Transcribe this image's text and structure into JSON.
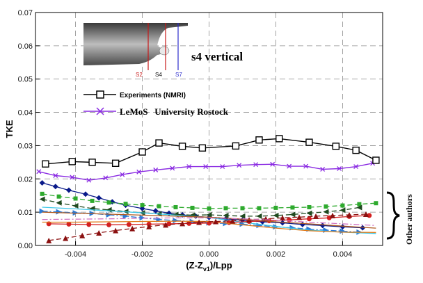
{
  "chart_data": {
    "type": "line",
    "xlabel": "(Z-Z",
    "xlabel_sub": "v1",
    "xlabel_tail": ")/Lpp",
    "ylabel": "TKE",
    "xlim": [
      -0.0052,
      0.0052
    ],
    "ylim": [
      0,
      0.07
    ],
    "x_ticks": [
      -0.004,
      -0.002,
      0.0,
      0.002,
      0.004
    ],
    "x_tick_labels": [
      "-0.004",
      "-0.002",
      "0.000",
      "0.002",
      "0.004"
    ],
    "y_ticks": [
      0,
      0.01,
      0.02,
      0.03,
      0.04,
      0.05,
      0.06,
      0.07
    ],
    "y_tick_labels": [
      "0.00",
      "0.01",
      "0.02",
      "0.03",
      "0.04",
      "0.05",
      "0.06",
      "0.07"
    ],
    "grid": true,
    "inset": {
      "title": "s4 vertical",
      "stations": [
        "S2",
        "S4",
        "S7"
      ]
    },
    "legend": [
      {
        "label": "Experiments (NMRI)",
        "color": "#000000",
        "marker": "square-open"
      },
      {
        "label": "LeMoS   University Rostock",
        "color": "#8a2be2",
        "marker": "x"
      }
    ],
    "side_note": "Other authors",
    "series": [
      {
        "name": "Experiments (NMRI)",
        "color": "#000000",
        "marker": "square-open",
        "dash": "solid",
        "x": [
          -0.0049,
          -0.0041,
          -0.0035,
          -0.0028,
          -0.002,
          -0.0015,
          -0.0008,
          -0.0002,
          0.0008,
          0.0015,
          0.0021,
          0.003,
          0.0038,
          0.0044,
          0.005
        ],
        "y": [
          0.0245,
          0.0252,
          0.025,
          0.0247,
          0.0281,
          0.0308,
          0.0298,
          0.0293,
          0.0299,
          0.0317,
          0.0321,
          0.031,
          0.0298,
          0.0286,
          0.0256
        ]
      },
      {
        "name": "LeMoS   University Rostock",
        "color": "#8a2be2",
        "marker": "x",
        "dash": "solid",
        "x": [
          -0.0051,
          -0.0046,
          -0.0041,
          -0.0036,
          -0.0031,
          -0.0026,
          -0.0021,
          -0.0016,
          -0.0011,
          -0.0006,
          -0.0001,
          0.0004,
          0.0009,
          0.0014,
          0.0019,
          0.0024,
          0.0029,
          0.0034,
          0.0039,
          0.0044,
          0.0049
        ],
        "y": [
          0.0222,
          0.021,
          0.0205,
          0.0196,
          0.0203,
          0.0213,
          0.0221,
          0.0227,
          0.0232,
          0.0237,
          0.0237,
          0.0237,
          0.0241,
          0.0243,
          0.0244,
          0.0238,
          0.0238,
          0.0229,
          0.0231,
          0.0237,
          0.0247
        ]
      },
      {
        "color": "#0a1a8a",
        "marker": "diamond",
        "dash": "solid",
        "x": [
          -0.005,
          -0.0046,
          -0.0042,
          -0.0037,
          -0.0033,
          -0.0029,
          -0.0025,
          -0.002,
          -0.0016,
          -0.0012,
          -0.0008,
          -0.0004,
          0.0,
          0.0005,
          0.001,
          0.0016,
          0.0022,
          0.0028,
          0.0034,
          0.004,
          0.0046
        ],
        "y": [
          0.0188,
          0.0177,
          0.0166,
          0.0154,
          0.0143,
          0.0131,
          0.0121,
          0.0111,
          0.0104,
          0.0097,
          0.0092,
          0.0088,
          0.0084,
          0.008,
          0.0076,
          0.0071,
          0.0068,
          0.0063,
          0.006,
          0.0056,
          0.0053
        ]
      },
      {
        "color": "#2eaa2e",
        "marker": "square-filled",
        "dash": "dashed",
        "x": [
          -0.005,
          -0.0045,
          -0.004,
          -0.0035,
          -0.003,
          -0.0025,
          -0.002,
          -0.0015,
          -0.001,
          -0.0005,
          0.0,
          0.0005,
          0.001,
          0.0015,
          0.002,
          0.0025,
          0.003,
          0.0035,
          0.004,
          0.0045,
          0.005
        ],
        "y": [
          0.0155,
          0.0147,
          0.0141,
          0.0134,
          0.0129,
          0.0125,
          0.0121,
          0.0118,
          0.0115,
          0.0113,
          0.0111,
          0.0112,
          0.0112,
          0.0112,
          0.0113,
          0.0114,
          0.0115,
          0.0117,
          0.012,
          0.0124,
          0.0127
        ]
      },
      {
        "color": "#1f4a1f",
        "marker": "triangle-left",
        "dash": "dashed",
        "x": [
          -0.005,
          -0.0045,
          -0.004,
          -0.0035,
          -0.003,
          -0.0025,
          -0.002,
          -0.0015,
          -0.001,
          -0.0005,
          0.0,
          0.0005,
          0.001,
          0.0015,
          0.002,
          0.0025,
          0.003,
          0.0035,
          0.004,
          0.0045
        ],
        "y": [
          0.0139,
          0.0128,
          0.0119,
          0.0111,
          0.0107,
          0.0102,
          0.0098,
          0.0095,
          0.0093,
          0.0091,
          0.0092,
          0.009,
          0.0088,
          0.0088,
          0.009,
          0.0093,
          0.0097,
          0.0101,
          0.0106,
          0.0114
        ]
      },
      {
        "color": "#2a7ad6",
        "marker": "triangle-right",
        "dash": "dashdot",
        "x": [
          -0.005,
          -0.0045,
          -0.004,
          -0.0035,
          -0.003,
          -0.0025,
          -0.002,
          -0.0015,
          -0.001,
          -0.0005,
          0.0,
          0.0005,
          0.001,
          0.0015,
          0.002,
          0.0025,
          0.003,
          0.0035,
          0.004,
          0.0045
        ],
        "y": [
          0.0103,
          0.0101,
          0.0098,
          0.0096,
          0.0092,
          0.0088,
          0.0083,
          0.0078,
          0.0075,
          0.0072,
          0.0068,
          0.0066,
          0.0064,
          0.006,
          0.0056,
          0.0053,
          0.0049,
          0.0046,
          0.0043,
          0.004
        ]
      },
      {
        "color": "#3ec8e8",
        "marker": "none",
        "dash": "solid",
        "x": [
          -0.005,
          -0.004,
          -0.003,
          -0.002,
          -0.001,
          0.0,
          0.001,
          0.002,
          0.003,
          0.004,
          0.005
        ],
        "y": [
          0.0115,
          0.011,
          0.0104,
          0.0098,
          0.0091,
          0.0084,
          0.007,
          0.0057,
          0.0046,
          0.004,
          0.0036
        ]
      },
      {
        "color": "#d42020",
        "marker": "circle",
        "dash": "solid",
        "x": [
          -0.0048,
          -0.0042,
          -0.0036,
          -0.003,
          -0.0024,
          -0.0018,
          -0.0012,
          -0.0006,
          0.0,
          0.0006,
          0.0012,
          0.0018,
          0.0024,
          0.003,
          0.0036,
          0.0042,
          0.0048
        ],
        "y": [
          0.0065,
          0.0064,
          0.0063,
          0.0062,
          0.0063,
          0.0064,
          0.0065,
          0.0066,
          0.0067,
          0.0069,
          0.0072,
          0.0074,
          0.0077,
          0.008,
          0.0083,
          0.0087,
          0.009
        ]
      },
      {
        "color": "#e07a1a",
        "marker": "none",
        "dash": "solid",
        "x": [
          -0.005,
          -0.004,
          -0.003,
          -0.002,
          -0.001,
          0.0,
          0.001,
          0.002,
          0.003,
          0.004,
          0.005
        ],
        "y": [
          0.007,
          0.007,
          0.0071,
          0.0072,
          0.0073,
          0.0072,
          0.0062,
          0.0052,
          0.0044,
          0.004,
          0.0039
        ]
      },
      {
        "color": "#8b1010",
        "marker": "triangle-up",
        "dash": "dashed",
        "x": [
          -0.0048,
          -0.0043,
          -0.0038,
          -0.0033,
          -0.0028,
          -0.0023,
          -0.0018,
          -0.0013,
          -0.0008,
          -0.0003,
          0.0002,
          0.0007,
          0.0012,
          0.0017,
          0.0022,
          0.0027,
          0.0032,
          0.0037,
          0.0042,
          0.0047
        ],
        "y": [
          0.0015,
          0.0022,
          0.003,
          0.0038,
          0.0045,
          0.0051,
          0.0057,
          0.0062,
          0.0066,
          0.007,
          0.0072,
          0.0074,
          0.0077,
          0.008,
          0.0083,
          0.0085,
          0.0088,
          0.009,
          0.0092,
          0.0094
        ]
      },
      {
        "color": "#b05a20",
        "marker": "none",
        "dash": "solid",
        "x": [
          -0.005,
          -0.004,
          -0.003,
          -0.002,
          -0.001,
          0.0,
          0.001,
          0.002,
          0.003,
          0.004,
          0.005
        ],
        "y": [
          0.01,
          0.0097,
          0.0094,
          0.0091,
          0.0088,
          0.0085,
          0.0079,
          0.0071,
          0.0065,
          0.0058,
          0.0052
        ]
      },
      {
        "color": "#d070c0",
        "marker": "none",
        "dash": "dashdot",
        "x": [
          -0.005,
          -0.004,
          -0.003,
          -0.002,
          -0.001,
          0.0,
          0.001,
          0.002,
          0.003,
          0.004,
          0.005
        ],
        "y": [
          0.0078,
          0.0079,
          0.008,
          0.0082,
          0.0083,
          0.0083,
          0.008,
          0.0076,
          0.007,
          0.0065,
          0.006
        ]
      }
    ]
  }
}
